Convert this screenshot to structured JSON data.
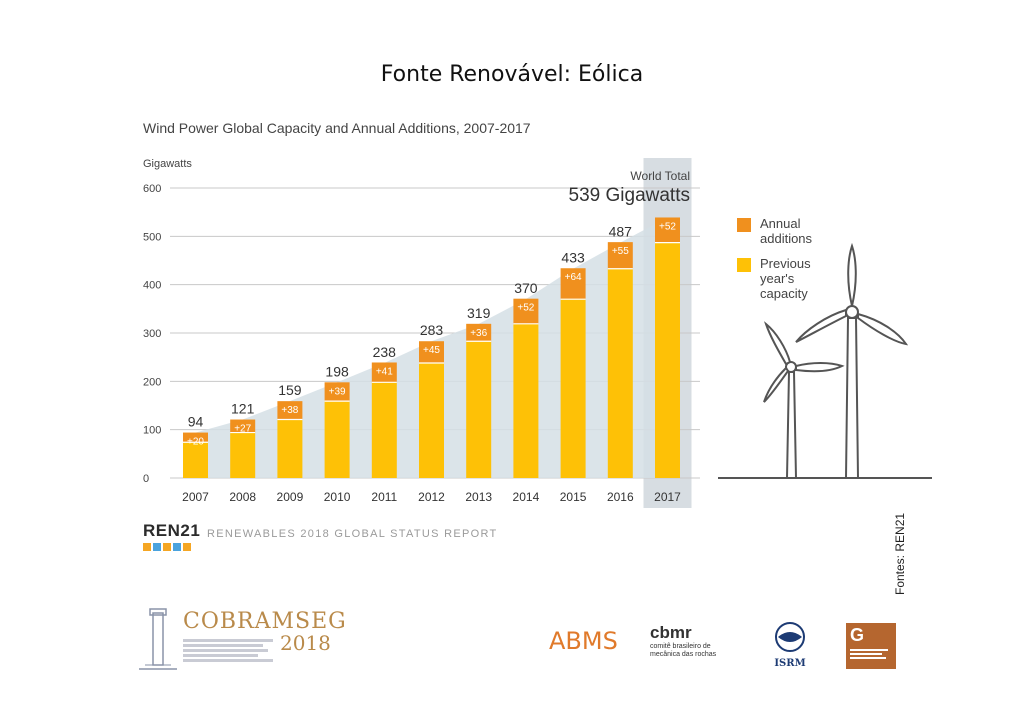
{
  "slide_title": "Fonte Renovável: Eólica",
  "source_note": "Fontes: REN21",
  "footer": {
    "ren21_logo": "REN21",
    "report_title": "RENEWABLES 2018 GLOBAL STATUS REPORT",
    "logos": {
      "cobramseg_title": "COBRAMSEG",
      "cobramseg_year": "2018",
      "abms": "ABMS",
      "cbmr": "cbmr",
      "cbmr_sub": "comitê brasileiro de mecânica das rochas",
      "isrm": "ISRM",
      "spg": "G"
    }
  },
  "colors": {
    "annual_additions": "#f0901e",
    "previous_capacity": "#fec106",
    "total_area": "#d5dfe5",
    "highlight_band": "#d7dde2",
    "turbine": "#555555"
  },
  "chart_data": {
    "type": "bar",
    "title": "Wind Power Global Capacity and Annual Additions, 2007-2017",
    "ylabel": "Gigawatts",
    "ylim": [
      0,
      600
    ],
    "yticks": [
      "0",
      "100",
      "200",
      "300",
      "400",
      "500",
      "600"
    ],
    "grid": true,
    "stacked": true,
    "legend_position": "right",
    "categories": [
      "2007",
      "2008",
      "2009",
      "2010",
      "2011",
      "2012",
      "2013",
      "2014",
      "2015",
      "2016",
      "2017"
    ],
    "series": [
      {
        "name": "Previous year's capacity",
        "values": [
          74,
          94,
          121,
          159,
          198,
          238,
          283,
          319,
          370,
          433,
          487
        ]
      },
      {
        "name": "Annual additions",
        "values": [
          20,
          27,
          38,
          39,
          41,
          45,
          36,
          52,
          64,
          55,
          52
        ]
      }
    ],
    "addition_labels": [
      "+20",
      "+27",
      "+38",
      "+39",
      "+41",
      "+45",
      "+36",
      "+52",
      "+64",
      "+55",
      "+52"
    ],
    "totals": [
      94,
      121,
      159,
      198,
      238,
      283,
      319,
      370,
      433,
      487,
      539
    ],
    "total_labels": [
      "94",
      "121",
      "159",
      "198",
      "238",
      "283",
      "319",
      "370",
      "433",
      "487",
      ""
    ],
    "highlight_category": "2017",
    "annotation": {
      "line1": "World Total",
      "line2": "539 Gigawatts"
    },
    "legend": [
      {
        "name": "Annual additions",
        "label_lines": [
          "Annual",
          "additions"
        ]
      },
      {
        "name": "Previous year's capacity",
        "label_lines": [
          "Previous",
          "year's",
          "capacity"
        ]
      }
    ]
  }
}
